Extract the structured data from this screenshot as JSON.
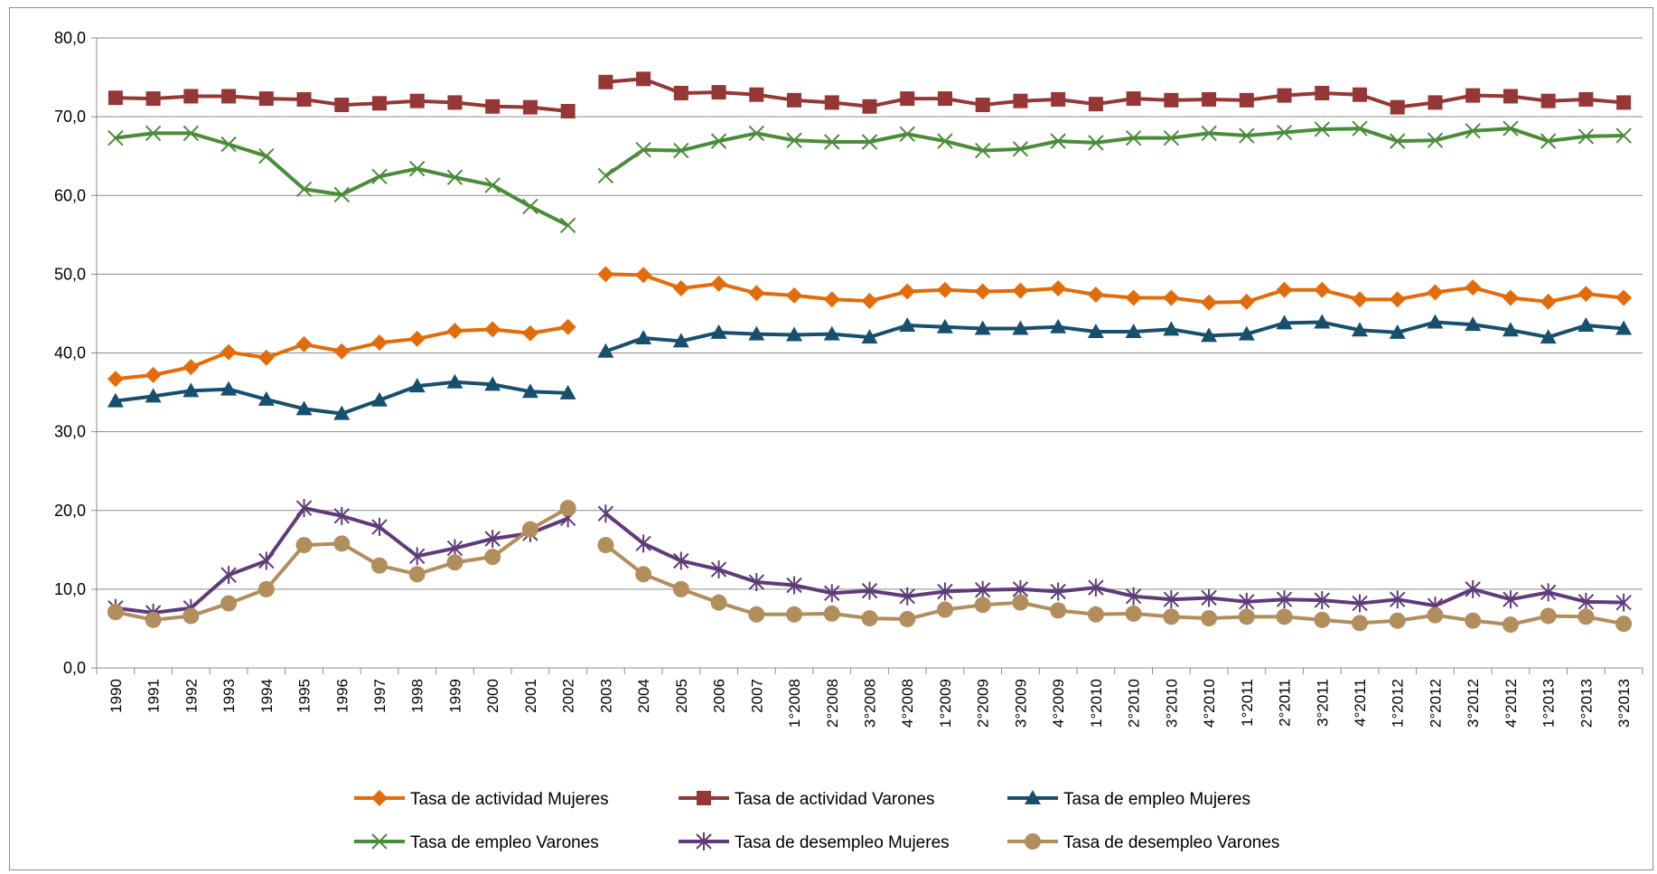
{
  "chart_data": {
    "type": "line",
    "title": "",
    "xlabel": "",
    "ylabel": "",
    "ylim": [
      0,
      80
    ],
    "y_ticks": [
      "0,0",
      "10,0",
      "20,0",
      "30,0",
      "40,0",
      "50,0",
      "60,0",
      "70,0",
      "80,0"
    ],
    "grid": "horizontal",
    "legend_position": "bottom",
    "break_after_index": 12,
    "categories": [
      "1990",
      "1991",
      "1992",
      "1993",
      "1994",
      "1995",
      "1996",
      "1997",
      "1998",
      "1999",
      "2000",
      "2001",
      "2002",
      "2003",
      "2004",
      "2005",
      "2006",
      "2007",
      "1°2008",
      "2°2008",
      "3°2008",
      "4°2008",
      "1°2009",
      "2°2009",
      "3°2009",
      "4°2009",
      "1°2010",
      "2°2010",
      "3°2010",
      "4°2010",
      "1°2011",
      "2°2011",
      "3°2011",
      "4°2011",
      "1°2012",
      "2°2012",
      "3°2012",
      "4°2012",
      "1°2013",
      "2°2013",
      "3°2013"
    ],
    "series": [
      {
        "name": "Tasa de actividad  Mujeres",
        "color": "#e36c0a",
        "marker": "diamond",
        "values": [
          36.7,
          37.2,
          38.2,
          40.1,
          39.4,
          41.1,
          40.2,
          41.3,
          41.8,
          42.8,
          43.0,
          42.5,
          43.3,
          50.0,
          49.9,
          48.2,
          48.8,
          47.6,
          47.3,
          46.8,
          46.6,
          47.8,
          48.0,
          47.8,
          47.9,
          48.2,
          47.4,
          47.0,
          47.0,
          46.4,
          46.5,
          48.0,
          48.0,
          46.8,
          46.8,
          47.7,
          48.3,
          47.0,
          46.5,
          47.5,
          47.0
        ]
      },
      {
        "name": "Tasa de actividad  Varones",
        "color": "#953735",
        "marker": "square",
        "values": [
          72.4,
          72.3,
          72.6,
          72.6,
          72.3,
          72.2,
          71.5,
          71.7,
          72.0,
          71.8,
          71.3,
          71.2,
          70.7,
          74.4,
          74.8,
          73.0,
          73.1,
          72.8,
          72.1,
          71.8,
          71.3,
          72.3,
          72.3,
          71.5,
          72.0,
          72.2,
          71.6,
          72.3,
          72.1,
          72.2,
          72.1,
          72.7,
          73.0,
          72.8,
          71.2,
          71.8,
          72.7,
          72.6,
          72.0,
          72.2,
          71.8
        ]
      },
      {
        "name": "Tasa de empleo  Mujeres",
        "color": "#17506e",
        "marker": "triangle",
        "values": [
          33.9,
          34.5,
          35.2,
          35.4,
          34.1,
          32.9,
          32.3,
          34.0,
          35.8,
          36.3,
          36.0,
          35.1,
          34.9,
          40.2,
          41.9,
          41.5,
          42.6,
          42.4,
          42.3,
          42.4,
          42.0,
          43.5,
          43.3,
          43.1,
          43.1,
          43.3,
          42.7,
          42.7,
          43.0,
          42.2,
          42.4,
          43.8,
          43.9,
          42.9,
          42.6,
          43.9,
          43.6,
          42.9,
          42.0,
          43.5,
          43.1
        ]
      },
      {
        "name": "Tasa de empleo  Varones",
        "color": "#4a8c3a",
        "marker": "x",
        "values": [
          67.3,
          67.9,
          67.9,
          66.5,
          65.0,
          60.8,
          60.1,
          62.4,
          63.4,
          62.3,
          61.3,
          58.6,
          56.2,
          62.5,
          65.8,
          65.7,
          66.9,
          67.9,
          67.0,
          66.8,
          66.8,
          67.8,
          66.9,
          65.7,
          65.9,
          66.9,
          66.7,
          67.3,
          67.3,
          67.9,
          67.6,
          68.0,
          68.4,
          68.5,
          66.9,
          67.0,
          68.2,
          68.5,
          66.9,
          67.5,
          67.6
        ]
      },
      {
        "name": "Tasa de desempleo Mujeres",
        "color": "#5f3b7a",
        "marker": "star",
        "values": [
          7.6,
          7.0,
          7.6,
          11.8,
          13.6,
          20.3,
          19.3,
          17.9,
          14.2,
          15.2,
          16.4,
          17.1,
          19.0,
          19.6,
          15.8,
          13.6,
          12.5,
          10.9,
          10.5,
          9.5,
          9.8,
          9.1,
          9.7,
          9.9,
          10.0,
          9.7,
          10.2,
          9.1,
          8.7,
          8.9,
          8.4,
          8.7,
          8.6,
          8.2,
          8.7,
          7.9,
          10.0,
          8.7,
          9.6,
          8.4,
          8.3
        ]
      },
      {
        "name": "Tasa de desempleo Varones",
        "color": "#b18e5b",
        "marker": "circle",
        "values": [
          7.1,
          6.1,
          6.6,
          8.2,
          10.0,
          15.6,
          15.8,
          13.0,
          11.9,
          13.4,
          14.1,
          17.6,
          20.3,
          15.6,
          11.9,
          10.0,
          8.3,
          6.8,
          6.8,
          6.9,
          6.3,
          6.2,
          7.4,
          8.0,
          8.3,
          7.3,
          6.8,
          6.9,
          6.5,
          6.3,
          6.5,
          6.5,
          6.1,
          5.7,
          6.0,
          6.7,
          6.0,
          5.5,
          6.6,
          6.5,
          5.6
        ]
      }
    ]
  }
}
